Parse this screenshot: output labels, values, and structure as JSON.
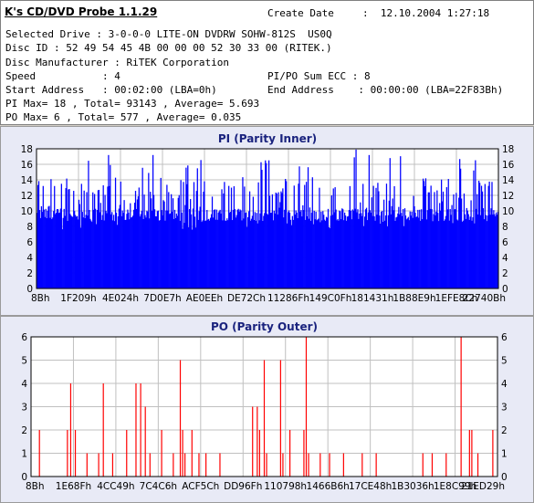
{
  "info": {
    "title": "K's CD/DVD Probe 1.1.29",
    "create_date_label": "Create Date",
    "create_date_value": ":  12.10.2004 1:27:18",
    "drive": "Selected Drive : 3-0-0-0 LITE-ON DVDRW SOHW-812S  US0Q",
    "disc_id": "Disc ID : 52 49 54 45 4B 00 00 00 52 30 33 00 (RITEK.)",
    "manufacturer": "Disc Manufacturer : RiTEK Corporation",
    "speed": "Speed           : 4",
    "sum_ecc": "PI/PO Sum ECC : 8",
    "start_address": "Start Address   : 00:02:00 (LBA=0h)",
    "end_address": "End Address    : 00:00:00 (LBA=22F83Bh)",
    "pi_stats": "PI Max= 18 , Total= 93143 , Average= 5.693",
    "po_stats": "PO Max= 6 , Total= 577 , Average= 0.035"
  },
  "colors": {
    "series": "#ff0000",
    "pi_series": "#0000ff",
    "plot_bg": "#ffffff",
    "grid": "#c0c0c0"
  },
  "chart_data": [
    {
      "type": "bar",
      "title": "PI (Parity Inner)",
      "ylim": [
        0,
        18
      ],
      "yticks": [
        0,
        2,
        4,
        6,
        8,
        10,
        12,
        14,
        16,
        18
      ],
      "grid": true,
      "xticks": [
        "8Bh",
        "1F209h",
        "4E024h",
        "7D0E7h",
        "AE0EEh",
        "DE72Ch",
        "11286Fh",
        "149C0Fh",
        "181431h",
        "1B88E9h",
        "1EFE8Ch",
        "22740Bh"
      ],
      "baseline": 9.5,
      "peak_max": 18,
      "num_samples": 530
    },
    {
      "type": "bar",
      "title": "PO (Parity Outer)",
      "ylim": [
        0,
        6
      ],
      "yticks": [
        0,
        1,
        2,
        3,
        4,
        5,
        6
      ],
      "grid": true,
      "xticks": [
        "8Bh",
        "1E68Fh",
        "4CC49h",
        "7C4C6h",
        "ACF5Ch",
        "DD96Fh",
        "110798h",
        "1466B6h",
        "17CE48h",
        "1B3036h",
        "1E8C99h",
        "21ED29h"
      ],
      "spikes": [
        [
          0.018,
          2
        ],
        [
          0.078,
          2
        ],
        [
          0.085,
          4
        ],
        [
          0.095,
          2
        ],
        [
          0.12,
          1
        ],
        [
          0.145,
          1
        ],
        [
          0.155,
          4
        ],
        [
          0.175,
          1
        ],
        [
          0.205,
          2
        ],
        [
          0.225,
          4
        ],
        [
          0.235,
          4
        ],
        [
          0.245,
          3
        ],
        [
          0.255,
          1
        ],
        [
          0.28,
          2
        ],
        [
          0.305,
          1
        ],
        [
          0.32,
          5
        ],
        [
          0.325,
          2
        ],
        [
          0.33,
          1
        ],
        [
          0.345,
          2
        ],
        [
          0.36,
          1
        ],
        [
          0.375,
          1
        ],
        [
          0.405,
          1
        ],
        [
          0.475,
          3
        ],
        [
          0.485,
          3
        ],
        [
          0.49,
          2
        ],
        [
          0.5,
          5
        ],
        [
          0.505,
          1
        ],
        [
          0.535,
          5
        ],
        [
          0.54,
          1
        ],
        [
          0.555,
          2
        ],
        [
          0.585,
          2
        ],
        [
          0.59,
          6
        ],
        [
          0.595,
          1
        ],
        [
          0.62,
          1
        ],
        [
          0.64,
          1
        ],
        [
          0.67,
          1
        ],
        [
          0.71,
          1
        ],
        [
          0.74,
          1
        ],
        [
          0.84,
          1
        ],
        [
          0.86,
          1
        ],
        [
          0.89,
          1
        ],
        [
          0.922,
          6
        ],
        [
          0.94,
          2
        ],
        [
          0.945,
          2
        ],
        [
          0.958,
          1
        ],
        [
          0.99,
          2
        ]
      ]
    }
  ]
}
